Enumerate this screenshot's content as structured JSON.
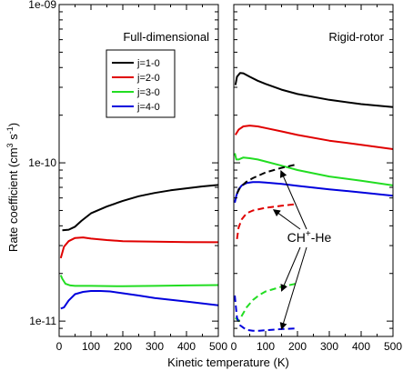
{
  "chart_data": {
    "type": "line",
    "xlabel": "Kinetic temperature (K)",
    "ylabel": "Rate coefficient (cm3 s-1)",
    "ylabel_parts": {
      "base": "Rate coefficient (cm",
      "exp1": "3",
      "mid": "s",
      "exp2": "-1",
      "end": ")"
    },
    "xlim": [
      0,
      500
    ],
    "ylim": [
      8e-12,
      1e-09
    ],
    "yscale": "log",
    "grid": false,
    "x_ticks": [
      0,
      100,
      200,
      300,
      400,
      500
    ],
    "y_ticks": [
      {
        "value": 1e-11,
        "label": "1e-11"
      },
      {
        "value": 1e-10,
        "label": "1e-10"
      },
      {
        "value": 1e-09,
        "label": "1e-09"
      }
    ],
    "legend": {
      "placement": "upper-left of left panel",
      "entries": [
        {
          "label": "j=1-0",
          "color": "#000000"
        },
        {
          "label": "j=2-0",
          "color": "#e00000"
        },
        {
          "label": "j=3-0",
          "color": "#22dd22"
        },
        {
          "label": "j=4-0",
          "color": "#0000dd"
        }
      ]
    },
    "annotation": {
      "text_base": "CH",
      "text_sup": "+",
      "text_end": "-He"
    },
    "panels": [
      {
        "title": "Full-dimensional",
        "series": [
          {
            "label": "j=1-0",
            "color": "#000000",
            "style": "solid",
            "x": [
              10,
              30,
              50,
              70,
              100,
              150,
              200,
              250,
              300,
              350,
              400,
              450,
              500
            ],
            "y": [
              3.75e-11,
              3.78e-11,
              3.95e-11,
              4.3e-11,
              4.8e-11,
              5.3e-11,
              5.75e-11,
              6.15e-11,
              6.45e-11,
              6.7e-11,
              6.9e-11,
              7.1e-11,
              7.25e-11
            ]
          },
          {
            "label": "j=2-0",
            "color": "#e00000",
            "style": "solid",
            "x": [
              5,
              15,
              30,
              50,
              75,
              100,
              150,
              200,
              300,
              400,
              500
            ],
            "y": [
              2.5e-11,
              2.95e-11,
              3.2e-11,
              3.35e-11,
              3.38e-11,
              3.32e-11,
              3.25e-11,
              3.2e-11,
              3.18e-11,
              3.16e-11,
              3.15e-11
            ]
          },
          {
            "label": "j=3-0",
            "color": "#22dd22",
            "style": "solid",
            "x": [
              5,
              10,
              20,
              35,
              50,
              75,
              100,
              200,
              300,
              400,
              500
            ],
            "y": [
              1.95e-11,
              1.85e-11,
              1.72e-11,
              1.68e-11,
              1.67e-11,
              1.67e-11,
              1.67e-11,
              1.66e-11,
              1.67e-11,
              1.68e-11,
              1.69e-11
            ]
          },
          {
            "label": "j=4-0",
            "color": "#0000dd",
            "style": "solid",
            "x": [
              5,
              15,
              30,
              50,
              75,
              100,
              130,
              160,
              200,
              250,
              300,
              400,
              500
            ],
            "y": [
              1.2e-11,
              1.22e-11,
              1.35e-11,
              1.48e-11,
              1.53e-11,
              1.55e-11,
              1.55e-11,
              1.54e-11,
              1.5e-11,
              1.45e-11,
              1.4e-11,
              1.33e-11,
              1.26e-11
            ]
          }
        ]
      },
      {
        "title": "Rigid-rotor",
        "series": [
          {
            "label": "j=1-0",
            "color": "#000000",
            "style": "solid",
            "x": [
              5,
              10,
              20,
              30,
              50,
              75,
              100,
              150,
              200,
              300,
              400,
              500
            ],
            "y": [
              3.1e-10,
              3.5e-10,
              3.7e-10,
              3.68e-10,
              3.5e-10,
              3.3e-10,
              3.15e-10,
              2.9e-10,
              2.72e-10,
              2.5e-10,
              2.35e-10,
              2.25e-10
            ]
          },
          {
            "label": "j=2-0",
            "color": "#e00000",
            "style": "solid",
            "x": [
              5,
              15,
              30,
              50,
              75,
              100,
              150,
              200,
              300,
              400,
              500
            ],
            "y": [
              1.5e-10,
              1.62e-10,
              1.7e-10,
              1.72e-10,
              1.7e-10,
              1.66e-10,
              1.58e-10,
              1.5e-10,
              1.38e-10,
              1.3e-10,
              1.22e-10
            ]
          },
          {
            "label": "j=3-0",
            "color": "#22dd22",
            "style": "solid",
            "x": [
              3,
              8,
              15,
              30,
              50,
              75,
              100,
              150,
              200,
              300,
              400,
              500
            ],
            "y": [
              1.15e-10,
              1.05e-10,
              1.05e-10,
              1.08e-10,
              1.07e-10,
              1.05e-10,
              1.02e-10,
              9.6e-11,
              9e-11,
              8.2e-11,
              7.7e-11,
              7.2e-11
            ]
          },
          {
            "label": "j=4-0",
            "color": "#0000dd",
            "style": "solid",
            "x": [
              3,
              8,
              15,
              25,
              40,
              60,
              80,
              100,
              150,
              200,
              300,
              400,
              500
            ],
            "y": [
              5.6e-11,
              6.2e-11,
              6.8e-11,
              7.2e-11,
              7.45e-11,
              7.55e-11,
              7.55e-11,
              7.5e-11,
              7.35e-11,
              7.15e-11,
              6.8e-11,
              6.5e-11,
              6.2e-11
            ]
          },
          {
            "label": "CH+-He j=1-0",
            "color": "#000000",
            "style": "dashed",
            "x": [
              10,
              20,
              40,
              60,
              100,
              150,
              200
            ],
            "y": [
              6.4e-11,
              7e-11,
              7.6e-11,
              8e-11,
              8.7e-11,
              9.3e-11,
              9.8e-11
            ]
          },
          {
            "label": "CH+-He j=2-0",
            "color": "#e00000",
            "style": "dashed",
            "x": [
              10,
              15,
              25,
              40,
              60,
              80,
              100,
              150,
              200
            ],
            "y": [
              3.3e-11,
              3.9e-11,
              4.4e-11,
              4.8e-11,
              5e-11,
              5.1e-11,
              5.2e-11,
              5.35e-11,
              5.5e-11
            ]
          },
          {
            "label": "CH+-He j=3-0",
            "color": "#22dd22",
            "style": "dashed",
            "x": [
              5,
              15,
              25,
              40,
              60,
              80,
              100,
              150,
              200
            ],
            "y": [
              1.05e-11,
              1e-11,
              1.08e-11,
              1.22e-11,
              1.36e-11,
              1.46e-11,
              1.54e-11,
              1.65e-11,
              1.73e-11
            ]
          },
          {
            "label": "CH+-He j=4-0",
            "color": "#0000dd",
            "style": "dashed",
            "x": [
              3,
              10,
              20,
              40,
              60,
              80,
              100,
              150,
              200
            ],
            "y": [
              1.45e-11,
              1.05e-11,
              9.4e-12,
              8.8e-12,
              8.7e-12,
              8.7e-12,
              8.75e-12,
              8.9e-12,
              9e-12
            ]
          }
        ]
      }
    ]
  }
}
